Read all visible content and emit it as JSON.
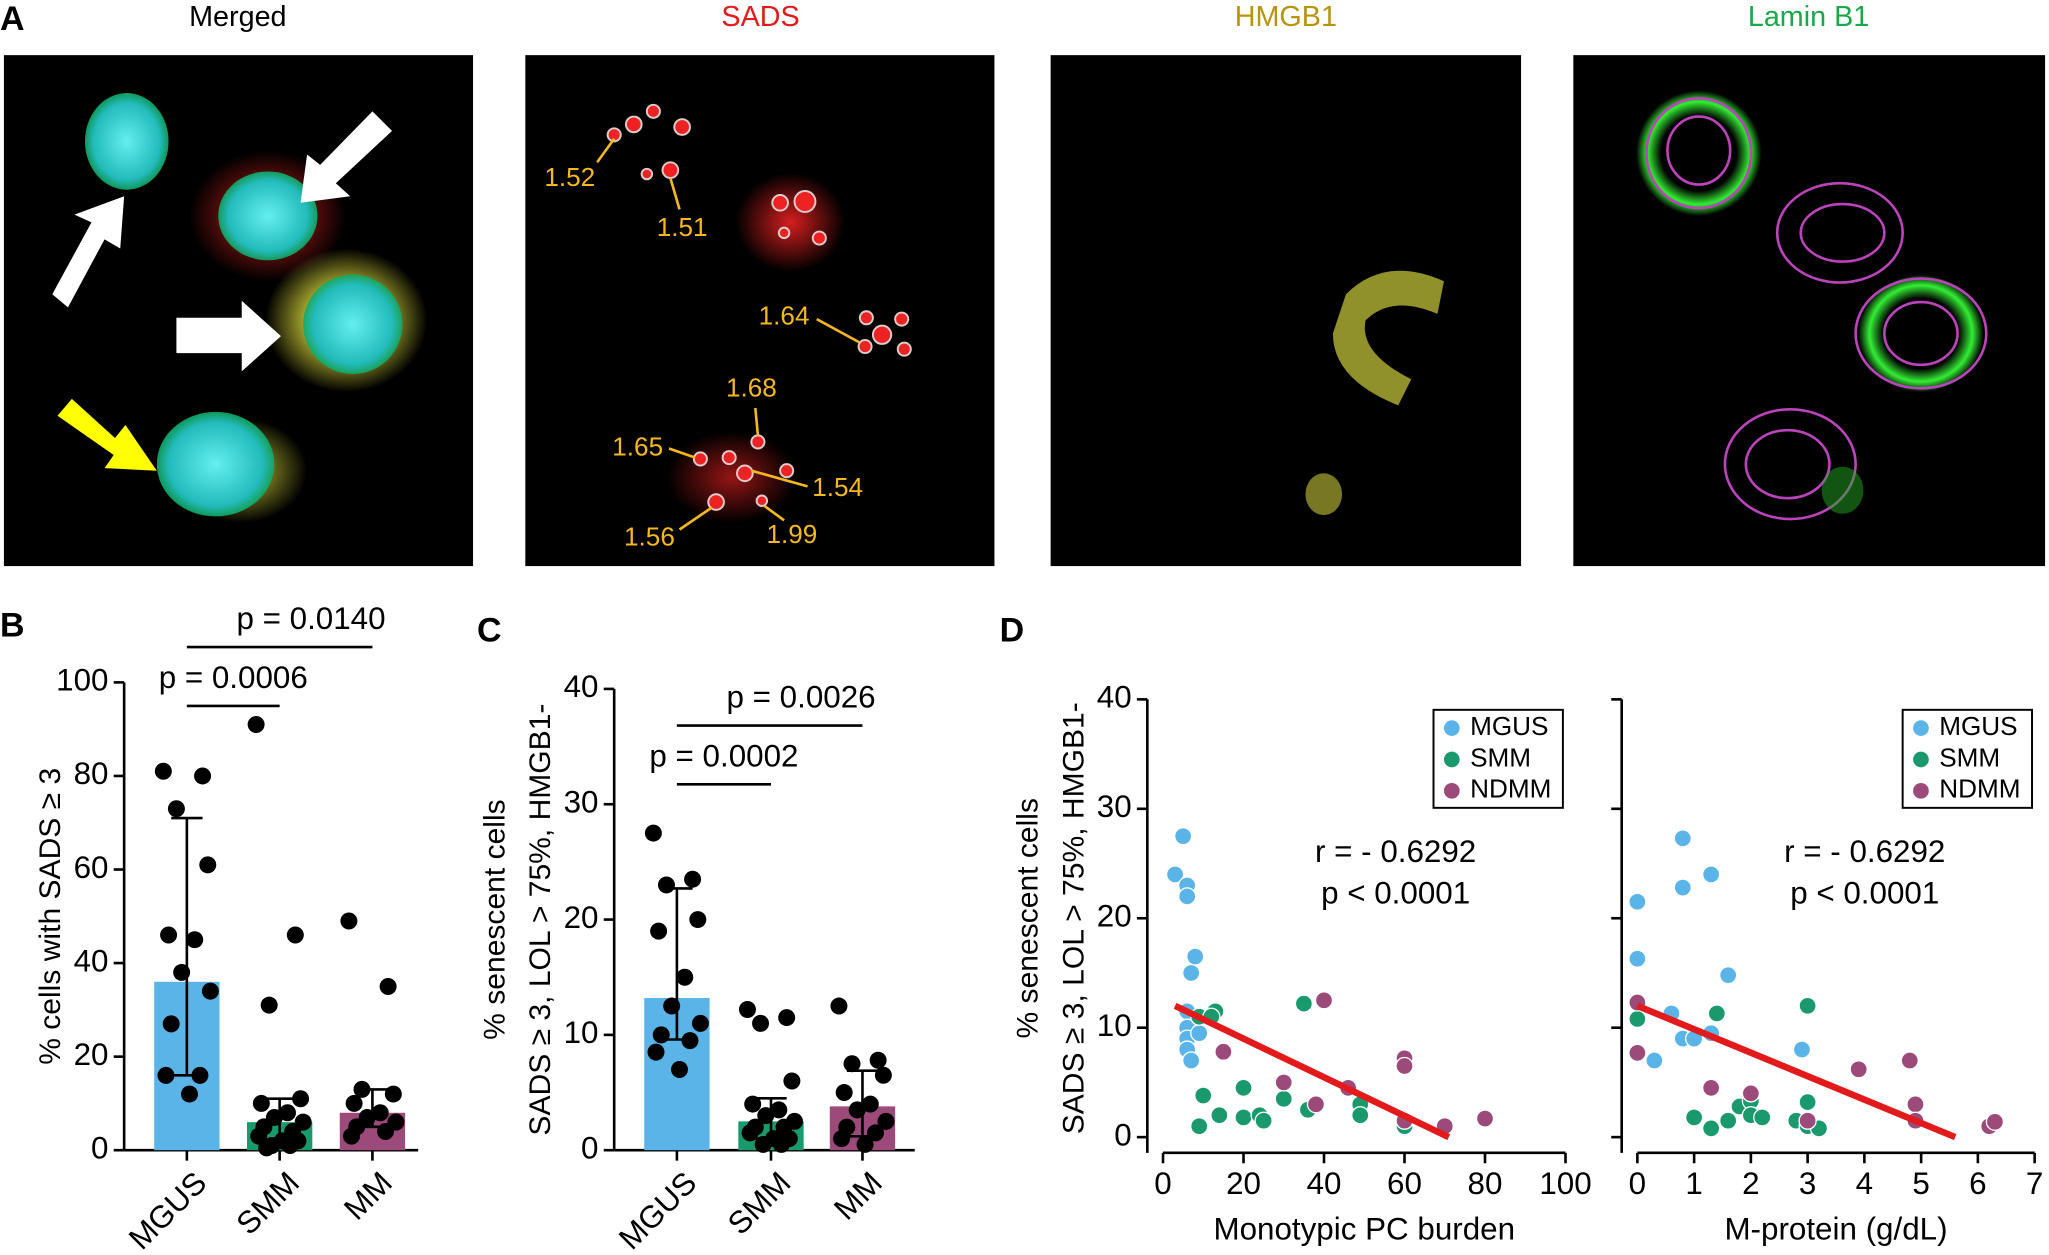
{
  "figure_a": {
    "panel": "A",
    "images": [
      {
        "title": "Merged"
      },
      {
        "title": "SADS",
        "annotations": [
          "1.52",
          "1.51",
          "1.64",
          "1.68",
          "1.65",
          "1.54",
          "1.56",
          "1.99"
        ]
      },
      {
        "title": "HMGB1"
      },
      {
        "title": "Lamin B1"
      }
    ]
  },
  "chart_data": [
    {
      "type": "bar",
      "panel": "B",
      "ylabel": [
        "% cells with SADS ≥ 3"
      ],
      "categories": [
        "MGUS",
        "SMM",
        "MM"
      ],
      "values": [
        36,
        6,
        8
      ],
      "colors": [
        "#5bb4e8",
        "#1a9a6c",
        "#9b4a7a"
      ],
      "whisker_low": [
        16,
        2,
        5
      ],
      "whisker_high": [
        71,
        11,
        13
      ],
      "points": [
        [
          81,
          80,
          73,
          61,
          46,
          45,
          38,
          34,
          27,
          16,
          16,
          12
        ],
        [
          91,
          46,
          31,
          11,
          10,
          8,
          7,
          6,
          5,
          4,
          3,
          2,
          2,
          1,
          1,
          0.5
        ],
        [
          49,
          35,
          13,
          12,
          10,
          8,
          7,
          6,
          5,
          4,
          3
        ]
      ],
      "ylim": [
        0,
        100
      ],
      "yticks": [
        0,
        20,
        40,
        60,
        80,
        100
      ],
      "comparisons": [
        {
          "label": "p = 0.0006",
          "between": [
            0,
            1
          ]
        },
        {
          "label": "p = 0.0140",
          "between": [
            0,
            2
          ]
        }
      ]
    },
    {
      "type": "bar",
      "panel": "C",
      "ylabel": [
        "% senescent cells",
        "SADS ≥ 3, LOL > 75%, HMGB1-"
      ],
      "categories": [
        "MGUS",
        "SMM",
        "MM"
      ],
      "values": [
        13.2,
        2.5,
        3.8
      ],
      "colors": [
        "#5bb4e8",
        "#1a9a6c",
        "#9b4a7a"
      ],
      "whisker_low": [
        9.6,
        1,
        1.2
      ],
      "whisker_high": [
        22.7,
        4.5,
        6.9
      ],
      "points": [
        [
          27.5,
          23.5,
          23,
          20,
          19,
          15,
          12.5,
          11,
          10,
          9.5,
          8.5,
          7
        ],
        [
          12.2,
          11.5,
          11,
          6,
          4,
          3.5,
          3,
          2.5,
          2,
          2,
          1.5,
          1,
          1,
          0.5,
          0.5
        ],
        [
          12.5,
          7.8,
          7.5,
          6.5,
          5,
          4,
          3.5,
          2.5,
          2,
          1.5,
          1,
          0.5
        ]
      ],
      "ylim": [
        0,
        40
      ],
      "yticks": [
        0,
        10,
        20,
        30,
        40
      ],
      "comparisons": [
        {
          "label": "p = 0.0002",
          "between": [
            0,
            1
          ]
        },
        {
          "label": "p = 0.0026",
          "between": [
            0,
            2
          ]
        }
      ]
    },
    {
      "type": "scatter",
      "panel": "D",
      "ylabel": [
        "% senescent cells",
        "SADS ≥ 3, LOL > 75%, HMGB1-"
      ],
      "xlabel": "Monotypic PC burden",
      "series": [
        {
          "name": "MGUS",
          "color": "#5bb4e8",
          "x": [
            3,
            5,
            6,
            6,
            8,
            7,
            6,
            6,
            6,
            6,
            7,
            9
          ],
          "y": [
            24,
            27.5,
            23,
            22,
            16.5,
            15,
            11.5,
            10,
            9,
            8,
            7,
            9.5
          ]
        },
        {
          "name": "SMM",
          "color": "#1a9a6c",
          "x": [
            9,
            13,
            12,
            10,
            9,
            14,
            20,
            20,
            24,
            25,
            30,
            35,
            36,
            49,
            49,
            60
          ],
          "y": [
            11,
            11.5,
            11,
            3.8,
            1,
            2,
            4.5,
            1.8,
            2,
            1.5,
            3.5,
            12.2,
            2.5,
            3,
            2,
            1
          ]
        },
        {
          "name": "NDMM",
          "color": "#9b4a7a",
          "x": [
            15,
            30,
            38,
            40,
            46,
            60,
            60,
            60,
            70,
            80
          ],
          "y": [
            7.8,
            5,
            3,
            12.5,
            4.5,
            7.2,
            6.5,
            1.5,
            1,
            1.7
          ]
        }
      ],
      "fit": {
        "x": [
          3,
          71
        ],
        "y": [
          12,
          0
        ],
        "color": "#e31a1c"
      },
      "annotations": [
        "r = - 0.6292",
        "p < 0.0001"
      ],
      "xlim": [
        0,
        100
      ],
      "xticks": [
        0,
        20,
        40,
        60,
        80,
        100
      ],
      "ylim": [
        0,
        40
      ],
      "yticks": [
        0,
        10,
        20,
        30,
        40
      ],
      "show_ytick_labels": true,
      "legend": "upper right"
    },
    {
      "type": "scatter",
      "xlabel": "M-protein (g/dL)",
      "series": [
        {
          "name": "MGUS",
          "color": "#5bb4e8",
          "x": [
            0,
            0,
            0.6,
            0.3,
            0.8,
            0.8,
            0.8,
            1,
            1.3,
            1.3,
            1.6,
            2.9
          ],
          "y": [
            21.5,
            16.3,
            11.3,
            7,
            27.3,
            22.8,
            9,
            9,
            24,
            9.5,
            14.8,
            8
          ]
        },
        {
          "name": "SMM",
          "color": "#1a9a6c",
          "x": [
            0,
            1.4,
            3,
            1,
            1.3,
            1.6,
            1.8,
            2,
            2,
            2.2,
            2.8,
            3,
            3,
            3.2
          ],
          "y": [
            10.8,
            11.3,
            12,
            1.8,
            0.8,
            1.5,
            2.8,
            3.3,
            2,
            1.8,
            1.5,
            3.2,
            1,
            0.8
          ]
        },
        {
          "name": "NDMM",
          "color": "#9b4a7a",
          "x": [
            0,
            0,
            1.3,
            2,
            3,
            3.9,
            4.8,
            4.9,
            4.9,
            6.2,
            6.3
          ],
          "y": [
            12.3,
            7.7,
            4.5,
            4,
            1.5,
            6.2,
            7,
            3,
            1.5,
            1,
            1.4
          ]
        }
      ],
      "fit": {
        "x": [
          0,
          5.6
        ],
        "y": [
          12,
          0
        ],
        "color": "#e31a1c"
      },
      "annotations": [
        "r = - 0.6292",
        "p < 0.0001"
      ],
      "xlim": [
        0,
        7
      ],
      "xticks": [
        0,
        1,
        2,
        3,
        4,
        5,
        6,
        7
      ],
      "ylim": [
        0,
        40
      ],
      "yticks": [
        0,
        10,
        20,
        30,
        40
      ],
      "show_ytick_labels": false,
      "legend": "upper right"
    }
  ]
}
